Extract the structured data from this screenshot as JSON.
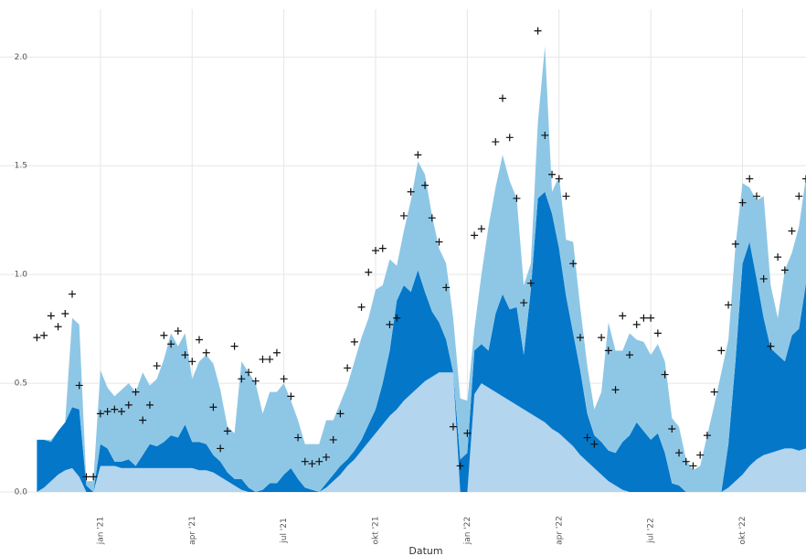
{
  "chart_data": {
    "type": "area",
    "stacked": true,
    "x_label": "Datum",
    "categories": [
      null,
      null,
      null,
      null,
      null,
      null,
      null,
      null,
      null,
      "jan '21",
      null,
      null,
      null,
      null,
      null,
      null,
      null,
      null,
      null,
      null,
      null,
      null,
      "apr '21",
      null,
      null,
      null,
      null,
      null,
      null,
      null,
      null,
      null,
      null,
      null,
      null,
      "jul '21",
      null,
      null,
      null,
      null,
      null,
      null,
      null,
      null,
      null,
      null,
      null,
      null,
      "okt '21",
      null,
      null,
      null,
      null,
      null,
      null,
      null,
      null,
      null,
      null,
      null,
      null,
      "jan '22",
      null,
      null,
      null,
      null,
      null,
      null,
      null,
      null,
      null,
      null,
      null,
      null,
      "apr '22",
      null,
      null,
      null,
      null,
      null,
      null,
      null,
      null,
      null,
      null,
      null,
      null,
      "jul '22",
      null,
      null,
      null,
      null,
      null,
      null,
      null,
      null,
      null,
      null,
      null,
      null,
      "okt '22",
      null,
      null,
      null,
      null,
      null,
      null,
      null,
      null,
      null
    ],
    "series": [
      {
        "color": "#b3d5ee",
        "values": [
          0,
          0.02,
          0.05,
          0.08,
          0.1,
          0.11,
          0.07,
          0,
          0,
          0.12,
          0.12,
          0.12,
          0.11,
          0.11,
          0.11,
          0.11,
          0.11,
          0.11,
          0.11,
          0.11,
          0.11,
          0.11,
          0.11,
          0.1,
          0.1,
          0.09,
          0.07,
          0.05,
          0.03,
          0.01,
          0,
          0,
          0,
          0,
          0,
          0,
          0,
          0,
          0,
          0,
          0,
          0.02,
          0.05,
          0.08,
          0.12,
          0.15,
          0.19,
          0.23,
          0.27,
          0.31,
          0.35,
          0.38,
          0.42,
          0.45,
          0.48,
          0.51,
          0.53,
          0.55,
          0.55,
          0.55,
          0,
          0,
          0.45,
          0.5,
          0.48,
          0.46,
          0.44,
          0.42,
          0.4,
          0.38,
          0.36,
          0.34,
          0.32,
          0.29,
          0.27,
          0.24,
          0.21,
          0.17,
          0.14,
          0.11,
          0.08,
          0.05,
          0.03,
          0.01,
          0,
          0,
          0,
          0,
          0,
          0,
          0,
          0,
          0,
          0,
          0,
          0,
          0,
          0,
          0.02,
          0.05,
          0.08,
          0.12,
          0.15,
          0.17,
          0.18,
          0.19,
          0.2,
          0.2,
          0.19,
          0.2
        ]
      },
      {
        "color": "#0477c9",
        "values": [
          0.24,
          0.22,
          0.18,
          0.2,
          0.22,
          0.28,
          0.31,
          0.03,
          0,
          0.1,
          0.08,
          0.02,
          0.03,
          0.04,
          0.01,
          0.06,
          0.11,
          0.1,
          0.12,
          0.15,
          0.14,
          0.2,
          0.12,
          0.13,
          0.12,
          0.08,
          0.07,
          0.04,
          0.03,
          0.05,
          0.02,
          0,
          0.01,
          0.04,
          0.04,
          0.08,
          0.11,
          0.06,
          0.02,
          0.01,
          0,
          0.02,
          0.03,
          0.04,
          0.03,
          0.04,
          0.05,
          0.08,
          0.11,
          0.19,
          0.3,
          0.5,
          0.53,
          0.47,
          0.54,
          0.41,
          0.3,
          0.23,
          0.15,
          0,
          0.15,
          0.18,
          0.2,
          0.18,
          0.17,
          0.36,
          0.47,
          0.42,
          0.45,
          0.25,
          0.57,
          1.01,
          1.06,
          0.99,
          0.85,
          0.66,
          0.52,
          0.39,
          0.22,
          0.15,
          0.15,
          0.14,
          0.15,
          0.22,
          0.26,
          0.32,
          0.28,
          0.24,
          0.27,
          0.18,
          0.04,
          0.03,
          0,
          0,
          0,
          0,
          0,
          0,
          0.2,
          0.55,
          0.97,
          1.03,
          0.83,
          0.63,
          0.48,
          0.44,
          0.4,
          0.52,
          0.56,
          0.76
        ]
      },
      {
        "color": "#8ec7e6",
        "values": [
          0,
          0,
          0.01,
          0,
          0,
          0.41,
          0.39,
          0.02,
          0.05,
          0.34,
          0.28,
          0.3,
          0.33,
          0.35,
          0.34,
          0.38,
          0.27,
          0.31,
          0.38,
          0.47,
          0.42,
          0.42,
          0.29,
          0.37,
          0.41,
          0.42,
          0.33,
          0.21,
          0.21,
          0.54,
          0.53,
          0.5,
          0.35,
          0.42,
          0.42,
          0.42,
          0.31,
          0.27,
          0.2,
          0.21,
          0.22,
          0.29,
          0.25,
          0.29,
          0.34,
          0.41,
          0.47,
          0.49,
          0.55,
          0.45,
          0.42,
          0.16,
          0.25,
          0.42,
          0.5,
          0.54,
          0.44,
          0.34,
          0.35,
          0.25,
          0.28,
          0.24,
          0.1,
          0.32,
          0.57,
          0.58,
          0.64,
          0.59,
          0.5,
          0.32,
          0.12,
          0.35,
          0.67,
          0.1,
          0.33,
          0.26,
          0.42,
          0.29,
          0.22,
          0.12,
          0.23,
          0.59,
          0.47,
          0.42,
          0.47,
          0.38,
          0.41,
          0.39,
          0.41,
          0.42,
          0.3,
          0.27,
          0.15,
          0.1,
          0.12,
          0.26,
          0.4,
          0.55,
          0.48,
          0.53,
          0.37,
          0.25,
          0.36,
          0.56,
          0.29,
          0.17,
          0.42,
          0.38,
          0.47,
          0.49
        ]
      }
    ],
    "markers": {
      "type": "scatter",
      "marker": "+",
      "color": "#111111",
      "values": [
        0.71,
        0.72,
        0.81,
        0.76,
        0.82,
        0.91,
        0.49,
        0.07,
        0.07,
        0.36,
        0.37,
        0.38,
        0.37,
        0.4,
        0.46,
        0.33,
        0.4,
        0.58,
        0.72,
        0.68,
        0.74,
        0.63,
        0.6,
        0.7,
        0.64,
        0.39,
        0.2,
        0.28,
        0.67,
        0.52,
        0.55,
        0.51,
        0.61,
        0.61,
        0.64,
        0.52,
        0.44,
        0.25,
        0.14,
        0.13,
        0.14,
        0.16,
        0.24,
        0.36,
        0.57,
        0.69,
        0.85,
        1.01,
        1.11,
        1.12,
        0.77,
        0.8,
        1.27,
        1.38,
        1.55,
        1.41,
        1.26,
        1.15,
        0.94,
        0.3,
        0.12,
        0.27,
        1.18,
        1.21,
        null,
        1.61,
        1.81,
        1.63,
        1.35,
        0.87,
        0.96,
        2.12,
        1.64,
        1.46,
        1.44,
        1.36,
        1.05,
        0.71,
        0.25,
        0.22,
        0.71,
        0.65,
        0.47,
        0.81,
        0.63,
        0.77,
        0.8,
        0.8,
        0.73,
        0.54,
        0.29,
        0.18,
        0.14,
        0.12,
        0.17,
        0.26,
        0.46,
        0.65,
        0.86,
        1.14,
        1.33,
        1.44,
        1.36,
        0.98,
        0.67,
        1.08,
        1.02,
        1.2,
        1.36,
        1.44
      ]
    },
    "ylim": [
      0,
      2.22
    ],
    "yticks": [
      {
        "value": 0,
        "label": "0.0"
      },
      0.5,
      {
        "value": 1,
        "label": "1.0"
      },
      1.5,
      {
        "value": 2,
        "label": "2.0"
      }
    ],
    "grid": true
  }
}
